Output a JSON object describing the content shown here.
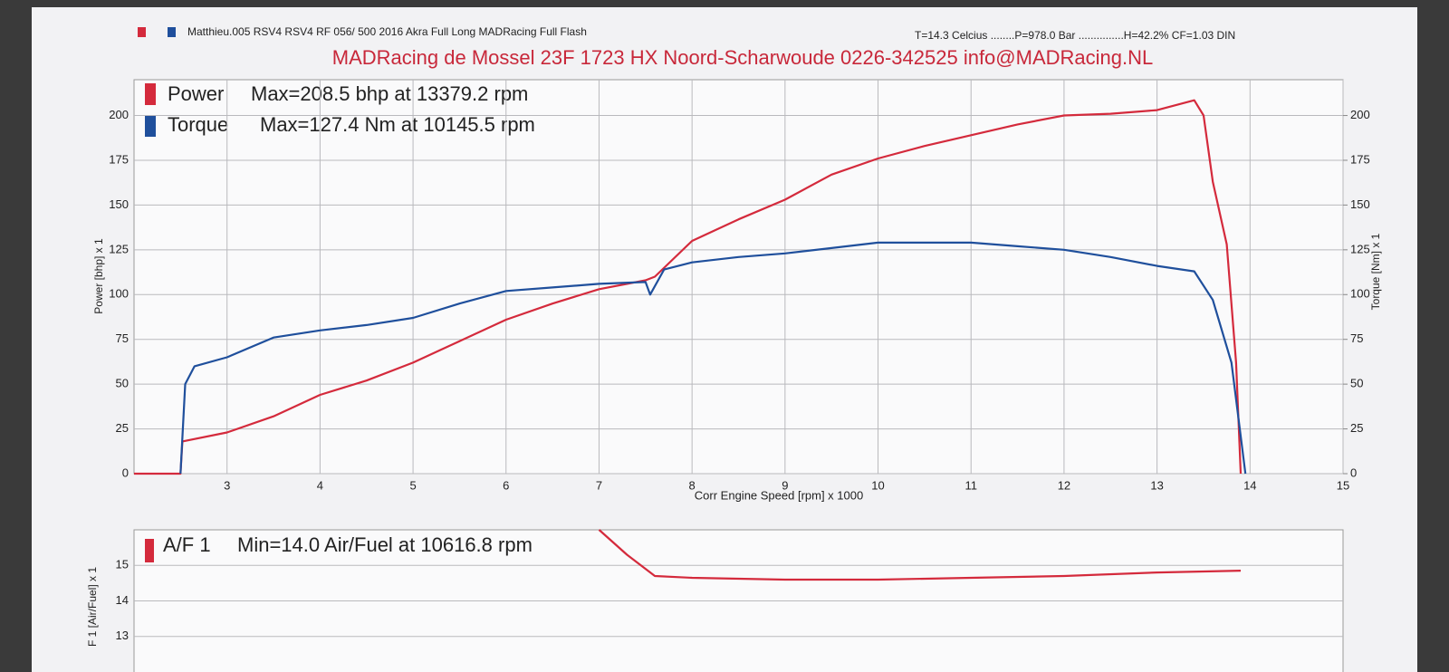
{
  "chart_data": [
    {
      "type": "line",
      "title": "MADRacing de Mossel 23F 1723 HX Noord-Scharwoude 0226-342525 info@MADRacing.NL",
      "subtitle": "Matthieu.005 RSV4   RSV4 RF 056/ 500 2016 Akra Full Long MADRacing Full Flash",
      "annotations": [
        "T=14.3 Celcius ........P=978.0 Bar ...............H=42.2% CF=1.03 DIN",
        "Max=208.5 bhp at 13379.2 rpm",
        "Max=127.4 Nm at 10145.5 rpm"
      ],
      "xlabel": "Corr Engine Speed [rpm] x 1000",
      "ylabel": "Power [bhp] x 1",
      "y2label": "Torque [Nm] x 1",
      "xlim": [
        2,
        15
      ],
      "xticks": [
        3,
        4,
        5,
        6,
        7,
        8,
        9,
        10,
        11,
        12,
        13,
        14,
        15
      ],
      "ylim": [
        0,
        220
      ],
      "yticks": [
        0,
        25,
        50,
        75,
        100,
        125,
        150,
        175,
        200
      ],
      "y2lim": [
        0,
        220
      ],
      "y2ticks": [
        0,
        25,
        50,
        75,
        100,
        125,
        150,
        175,
        200
      ],
      "grid": true,
      "series": [
        {
          "name": "Power",
          "color": "#d42a3c",
          "x": [
            2.0,
            2.5,
            2.52,
            3,
            3.5,
            4,
            4.5,
            5,
            5.5,
            6,
            6.5,
            7,
            7.5,
            7.6,
            8,
            8.5,
            9,
            9.5,
            10,
            10.5,
            11,
            11.5,
            12,
            12.5,
            13,
            13.4,
            13.5,
            13.6,
            13.75,
            13.85,
            13.9
          ],
          "values": [
            0,
            0,
            18,
            23,
            32,
            44,
            52,
            62,
            74,
            86,
            95,
            103,
            108,
            110,
            130,
            142,
            153,
            167,
            176,
            183,
            189,
            195,
            200,
            201,
            203,
            208.5,
            200,
            163,
            128,
            62,
            0
          ]
        },
        {
          "name": "Torque",
          "color": "#1f4f9c",
          "axis": "y2",
          "x": [
            2.5,
            2.55,
            2.65,
            3,
            3.5,
            4,
            4.5,
            5,
            5.5,
            6,
            6.5,
            7,
            7.5,
            7.55,
            7.7,
            8,
            8.5,
            9,
            9.5,
            10,
            10.5,
            11,
            11.5,
            12,
            12.5,
            13,
            13.4,
            13.6,
            13.8,
            13.95
          ],
          "values": [
            0,
            50,
            60,
            65,
            76,
            80,
            83,
            87,
            95,
            102,
            104,
            106,
            107,
            100,
            114,
            118,
            121,
            123,
            126,
            129,
            129,
            129,
            127,
            125,
            121,
            116,
            113,
            97,
            62,
            0
          ]
        }
      ]
    },
    {
      "type": "line",
      "annotations": [
        "Min=14.0 Air/Fuel at 10616.8 rpm"
      ],
      "ylabel": "F 1 [Air/Fuel] x 1",
      "xlim": [
        2,
        15
      ],
      "ylim": [
        12,
        16
      ],
      "yticks": [
        13,
        14,
        15
      ],
      "grid": true,
      "series": [
        {
          "name": "A/F 1",
          "color": "#d42a3c",
          "x": [
            7.0,
            7.3,
            7.6,
            8,
            9,
            10,
            11,
            12,
            13,
            13.9
          ],
          "values": [
            16,
            15.3,
            14.7,
            14.65,
            14.6,
            14.6,
            14.65,
            14.7,
            14.8,
            14.85
          ]
        }
      ]
    }
  ]
}
